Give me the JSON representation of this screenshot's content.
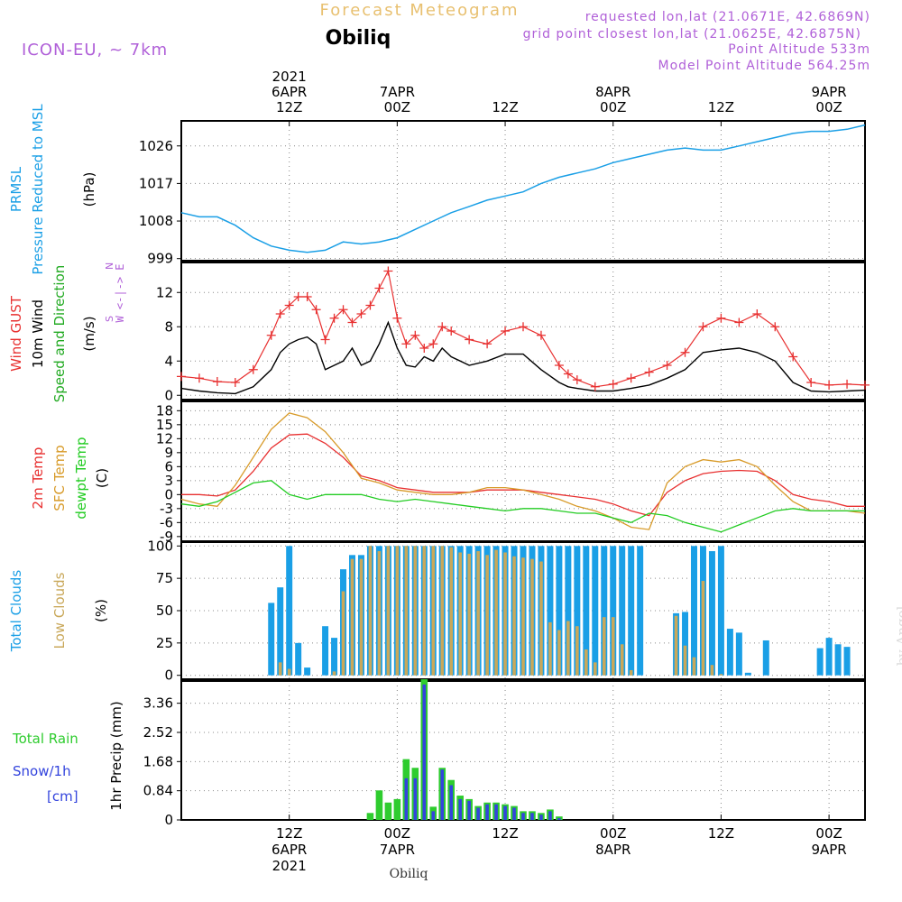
{
  "header": {
    "title": "Forecast Meteogram",
    "location": "Obiliq",
    "model": "ICON-EU, ~ 7km",
    "requested": "requested lon,lat (21.0671E, 42.6869N)",
    "gridpoint": "grid point closest lon,lat (21.0625E, 42.6875N)",
    "point_alt": "Point Altitude 533m",
    "model_alt": "Model Point Altitude 564.25m",
    "watermark": "by Angel",
    "footer_location": "Obiliq"
  },
  "time_axis": {
    "x_unit": "hours from 2021-04-06 00Z",
    "range": [
      0,
      76
    ],
    "top_ticks": [
      {
        "hour": 12,
        "lines": [
          "2021",
          "6APR",
          "12Z"
        ]
      },
      {
        "hour": 24,
        "lines": [
          "7APR",
          "00Z"
        ]
      },
      {
        "hour": 36,
        "lines": [
          "12Z"
        ]
      },
      {
        "hour": 48,
        "lines": [
          "8APR",
          "00Z"
        ]
      },
      {
        "hour": 60,
        "lines": [
          "12Z"
        ]
      },
      {
        "hour": 72,
        "lines": [
          "9APR",
          "00Z"
        ]
      }
    ],
    "bottom_ticks": [
      {
        "hour": 12,
        "lines": [
          "12Z",
          "6APR",
          "2021"
        ]
      },
      {
        "hour": 24,
        "lines": [
          "00Z",
          "7APR"
        ]
      },
      {
        "hour": 36,
        "lines": [
          "12Z"
        ]
      },
      {
        "hour": 48,
        "lines": [
          "00Z",
          "8APR"
        ]
      },
      {
        "hour": 60,
        "lines": [
          "12Z"
        ]
      },
      {
        "hour": 72,
        "lines": [
          "00Z",
          "9APR"
        ]
      }
    ]
  },
  "colors": {
    "pressure": "#1a9fe6",
    "gust": "#e83030",
    "wind": "#000000",
    "direction": "#22aa22",
    "temp2m": "#e83030",
    "sfc": "#d89b2a",
    "dewpt": "#22cc22",
    "total_clouds": "#1a9fe6",
    "low_clouds": "#c9a85a",
    "rain": "#2ecc2e",
    "snow": "#3344dd",
    "header_purple": "#b060d8",
    "title_gold": "#e8c070"
  },
  "panels": {
    "pressure": {
      "labels": [
        "PRMSL",
        "Pressure Reduced to MSL"
      ],
      "unit": "(hPa)",
      "yticks": [
        999,
        1008,
        1017,
        1026
      ]
    },
    "wind": {
      "labels": [
        "Wind GUST",
        "10m Wind",
        "Speed and Direction"
      ],
      "unit": "(m/s)",
      "yticks": [
        0,
        4,
        8,
        12
      ],
      "compass": [
        "N",
        "W <-|-> E",
        "S"
      ]
    },
    "temp": {
      "labels": [
        "2m Temp",
        "SFC Temp",
        "dewpt Temp"
      ],
      "unit": "(C)",
      "yticks": [
        -9,
        -6,
        -3,
        0,
        3,
        6,
        9,
        12,
        15,
        18
      ]
    },
    "clouds": {
      "labels": [
        "Total Clouds",
        "Low Clouds"
      ],
      "unit": "(%)",
      "yticks": [
        0,
        25,
        50,
        75,
        100
      ]
    },
    "precip": {
      "labels": [
        "Total  Rain",
        "Snow/1h",
        "[cm]"
      ],
      "unit": "1hr Precip (mm)",
      "yticks": [
        "0",
        "0.84",
        "1.68",
        "2.52",
        "3.36"
      ]
    }
  },
  "chart_data": [
    {
      "type": "line",
      "title": "PRMSL Pressure Reduced to MSL",
      "ylabel": "(hPa)",
      "ylim": [
        998.5,
        1032
      ],
      "x": [
        0,
        2,
        4,
        6,
        8,
        10,
        12,
        14,
        16,
        18,
        20,
        22,
        24,
        26,
        28,
        30,
        32,
        34,
        36,
        38,
        40,
        42,
        44,
        46,
        48,
        50,
        52,
        54,
        56,
        58,
        60,
        62,
        64,
        66,
        68,
        70,
        72,
        74,
        76
      ],
      "series": [
        {
          "values": [
            1010,
            1009,
            1009,
            1007,
            1004,
            1002,
            1001,
            1000.5,
            1001,
            1003,
            1002.5,
            1003,
            1004,
            1006,
            1008,
            1010,
            1011.5,
            1013,
            1014,
            1015,
            1017,
            1018.5,
            1019.5,
            1020.5,
            1022,
            1023,
            1024,
            1025,
            1025.5,
            1025,
            1025,
            1026,
            1027,
            1028,
            1029,
            1029.5,
            1029.5,
            1030,
            1031
          ]
        }
      ]
    },
    {
      "type": "line",
      "title": "Wind GUST / 10m Wind Speed and Direction",
      "ylabel": "(m/s)",
      "ylim": [
        -0.5,
        15.5
      ],
      "x": [
        0,
        2,
        4,
        6,
        8,
        10,
        11,
        12,
        13,
        14,
        15,
        16,
        17,
        18,
        19,
        20,
        21,
        22,
        23,
        24,
        25,
        26,
        27,
        28,
        29,
        30,
        32,
        34,
        36,
        38,
        40,
        42,
        43,
        44,
        46,
        48,
        50,
        52,
        54,
        56,
        58,
        60,
        62,
        64,
        66,
        68,
        70,
        72,
        74,
        76
      ],
      "series": [
        {
          "name": "Wind GUST",
          "values": [
            2.2,
            2.0,
            1.6,
            1.5,
            3.0,
            7.0,
            9.5,
            10.5,
            11.5,
            11.5,
            10.0,
            6.5,
            9.0,
            10.0,
            8.5,
            9.5,
            10.5,
            12.5,
            14.5,
            9.0,
            6.0,
            7.0,
            5.5,
            6.0,
            8.0,
            7.5,
            6.5,
            6.0,
            7.5,
            8.0,
            7.0,
            3.5,
            2.5,
            1.8,
            1.0,
            1.3,
            2.0,
            2.7,
            3.5,
            5.0,
            8.0,
            9.0,
            8.5,
            9.5,
            8.0,
            4.5,
            1.5,
            1.2,
            1.3,
            1.2
          ]
        },
        {
          "name": "10m Wind",
          "values": [
            0.8,
            0.5,
            0.3,
            0.2,
            1.0,
            3.0,
            5.0,
            6.0,
            6.5,
            6.8,
            6.0,
            3.0,
            3.5,
            4.0,
            5.5,
            3.5,
            4.0,
            6.0,
            8.5,
            5.5,
            3.5,
            3.3,
            4.5,
            4.0,
            5.5,
            4.5,
            3.5,
            4.0,
            4.8,
            4.8,
            3.0,
            1.5,
            1.0,
            0.8,
            0.5,
            0.5,
            0.8,
            1.2,
            2.0,
            3.0,
            5.0,
            5.3,
            5.5,
            5.0,
            4.0,
            1.5,
            0.5,
            0.4,
            0.5,
            0.6
          ]
        }
      ]
    },
    {
      "type": "line",
      "title": "2m Temp / SFC Temp / dewpt Temp",
      "ylabel": "(C)",
      "ylim": [
        -10,
        20
      ],
      "x": [
        0,
        2,
        4,
        6,
        8,
        10,
        12,
        14,
        16,
        18,
        20,
        22,
        24,
        26,
        28,
        30,
        32,
        34,
        36,
        38,
        40,
        42,
        44,
        46,
        48,
        50,
        52,
        54,
        56,
        58,
        60,
        62,
        64,
        66,
        68,
        70,
        72,
        74,
        76
      ],
      "series": [
        {
          "name": "2m Temp",
          "values": [
            0.0,
            0.0,
            -0.3,
            1.0,
            5.0,
            10.0,
            12.8,
            13.0,
            11.0,
            8.0,
            4.0,
            3.0,
            1.5,
            1.0,
            0.5,
            0.5,
            0.5,
            1.0,
            1.0,
            1.0,
            0.5,
            0.0,
            -0.5,
            -1.0,
            -2.0,
            -3.5,
            -4.5,
            0.5,
            3.0,
            4.5,
            5.0,
            5.2,
            5.0,
            3.0,
            0.0,
            -1.0,
            -1.5,
            -2.5,
            -2.5
          ]
        },
        {
          "name": "SFC Temp",
          "values": [
            -1.0,
            -2.0,
            -2.5,
            2.0,
            8.0,
            14.0,
            17.5,
            16.5,
            13.5,
            9.0,
            3.5,
            2.5,
            1.0,
            0.5,
            0.0,
            0.0,
            0.5,
            1.5,
            1.5,
            1.0,
            0.0,
            -1.0,
            -2.5,
            -3.5,
            -5.0,
            -7.0,
            -7.5,
            2.5,
            6.0,
            7.5,
            7.0,
            7.5,
            6.0,
            2.0,
            -1.5,
            -3.5,
            -3.5,
            -3.5,
            -4.0
          ]
        },
        {
          "name": "dewpt Temp",
          "values": [
            -2.0,
            -2.5,
            -1.5,
            0.5,
            2.5,
            3.0,
            0.0,
            -1.0,
            0.0,
            0.0,
            0.0,
            -1.0,
            -1.5,
            -1.0,
            -1.5,
            -2.0,
            -2.5,
            -3.0,
            -3.5,
            -3.0,
            -3.0,
            -3.5,
            -4.0,
            -4.0,
            -5.0,
            -6.0,
            -4.0,
            -4.5,
            -6.0,
            -7.0,
            -8.0,
            -6.5,
            -5.0,
            -3.5,
            -3.0,
            -3.5,
            -3.5,
            -3.5,
            -3.5
          ]
        }
      ]
    },
    {
      "type": "bar",
      "title": "Total Clouds / Low Clouds",
      "ylabel": "(%)",
      "ylim": [
        -3,
        103
      ],
      "x": [
        10,
        11,
        12,
        13,
        14,
        16,
        17,
        18,
        19,
        20,
        21,
        22,
        23,
        24,
        25,
        26,
        27,
        28,
        29,
        30,
        31,
        32,
        33,
        34,
        35,
        36,
        37,
        38,
        39,
        40,
        41,
        42,
        43,
        44,
        45,
        46,
        47,
        48,
        49,
        50,
        51,
        55,
        56,
        57,
        58,
        59,
        60,
        61,
        62,
        63,
        65,
        71,
        72,
        73,
        74
      ],
      "series": [
        {
          "name": "Total Clouds",
          "values": [
            56,
            68,
            100,
            25,
            6,
            38,
            29,
            82,
            93,
            93,
            100,
            100,
            100,
            100,
            100,
            100,
            100,
            100,
            100,
            100,
            100,
            100,
            100,
            100,
            100,
            100,
            100,
            100,
            100,
            100,
            100,
            100,
            100,
            100,
            100,
            100,
            100,
            100,
            100,
            100,
            100,
            48,
            49,
            100,
            100,
            96,
            100,
            36,
            33,
            2,
            27,
            21,
            29,
            24,
            22
          ]
        },
        {
          "name": "Low Clouds",
          "values": [
            0,
            10,
            5,
            0,
            0,
            0,
            3,
            65,
            90,
            90,
            100,
            96,
            100,
            100,
            100,
            100,
            100,
            100,
            100,
            99,
            95,
            94,
            96,
            93,
            97,
            95,
            92,
            91,
            90,
            88,
            41,
            35,
            42,
            38,
            20,
            10,
            45,
            45,
            24,
            4,
            0,
            46,
            23,
            14,
            73,
            8,
            1,
            0,
            0,
            0,
            0,
            0,
            0,
            0,
            0
          ]
        }
      ]
    },
    {
      "type": "bar",
      "title": "Total Rain / Snow/1h [cm]",
      "ylabel": "1hr Precip (mm)",
      "ylim": [
        0,
        4.0
      ],
      "x": [
        21,
        22,
        23,
        24,
        25,
        26,
        27,
        28,
        29,
        30,
        31,
        32,
        33,
        34,
        35,
        36,
        37,
        38,
        39,
        40,
        41,
        42
      ],
      "series": [
        {
          "name": "Total Rain",
          "values": [
            0.2,
            0.85,
            0.5,
            0.6,
            1.75,
            1.5,
            4.05,
            0.38,
            1.5,
            1.15,
            0.7,
            0.6,
            0.4,
            0.5,
            0.5,
            0.45,
            0.4,
            0.25,
            0.25,
            0.2,
            0.3,
            0.1
          ]
        },
        {
          "name": "Snow/1h",
          "values": [
            0,
            0,
            0,
            0,
            1.2,
            1.2,
            3.9,
            0.25,
            1.45,
            1.0,
            0.6,
            0.55,
            0.35,
            0.45,
            0.45,
            0.4,
            0.35,
            0.2,
            0.2,
            0.15,
            0.25,
            0.05
          ]
        }
      ]
    }
  ]
}
